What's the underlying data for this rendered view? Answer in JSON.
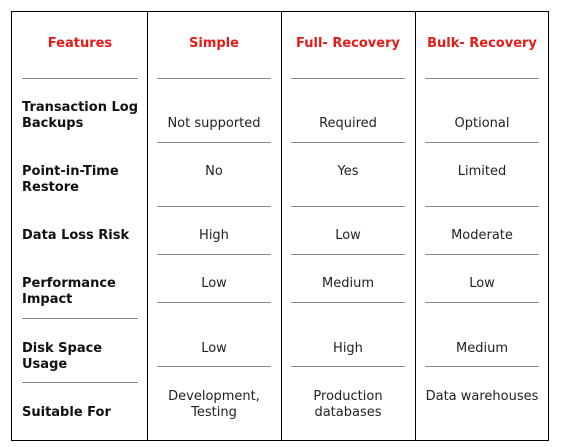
{
  "table": {
    "headers": [
      "Features",
      "Simple",
      "Full- Recovery",
      "Bulk- Recovery"
    ],
    "rows": [
      {
        "feature": [
          "Transaction Log",
          "Backups"
        ],
        "simple": [
          "Not supported"
        ],
        "full": [
          "Required"
        ],
        "bulk": [
          "Optional"
        ]
      },
      {
        "feature": [
          "Point-in-Time",
          "Restore"
        ],
        "simple": [
          "No"
        ],
        "full": [
          "Yes"
        ],
        "bulk": [
          "Limited"
        ]
      },
      {
        "feature": [
          "Data Loss Risk"
        ],
        "simple": [
          "High"
        ],
        "full": [
          "Low"
        ],
        "bulk": [
          "Moderate"
        ]
      },
      {
        "feature": [
          "Performance",
          "Impact"
        ],
        "simple": [
          "Low"
        ],
        "full": [
          "Medium"
        ],
        "bulk": [
          "Low"
        ]
      },
      {
        "feature": [
          "Disk Space",
          "Usage"
        ],
        "simple": [
          "Low"
        ],
        "full": [
          "High"
        ],
        "bulk": [
          "Medium"
        ]
      },
      {
        "feature": [
          "Suitable For"
        ],
        "simple": [
          "Development,",
          "Testing"
        ],
        "full": [
          "Production",
          "databases"
        ],
        "bulk": [
          "Data warehouses"
        ]
      }
    ]
  },
  "colors": {
    "header_text": "#e41b17",
    "border": "#000000",
    "divider": "#8a8a8a"
  }
}
